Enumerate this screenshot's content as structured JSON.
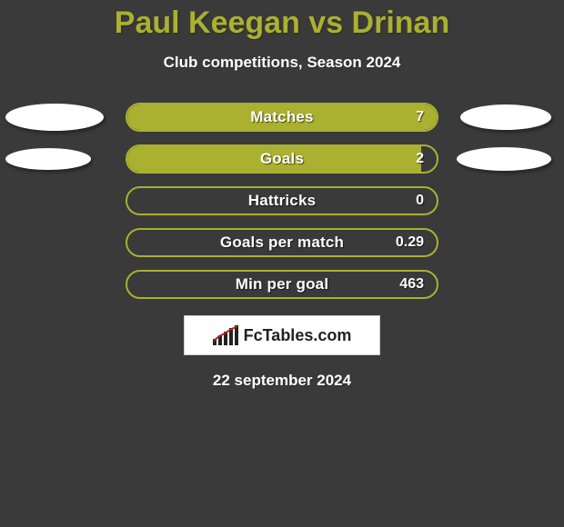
{
  "colors": {
    "page_bg": "#3a3a3a",
    "title_color": "#aab02f",
    "text_light": "#ffffff",
    "bar_border": "#aab02f",
    "bar_fill": "#aab02f",
    "bar_track": "#3a3a3a",
    "ellipse_fill": "#ffffff",
    "brand_bg": "#ffffff",
    "brand_border": "#cccccc",
    "brand_text": "#222222",
    "brand_bar": "#222222",
    "brand_line": "#b22222"
  },
  "title": "Paul Keegan vs Drinan",
  "subtitle": "Club competitions, Season 2024",
  "date": "22 september 2024",
  "brand": "FcTables.com",
  "stats": [
    {
      "label": "Matches",
      "value": "7",
      "fill_pct": 100,
      "show_left_ellipse": true,
      "show_right_ellipse": true,
      "left_w": 108,
      "left_h": 30,
      "right_w": 100,
      "right_h": 28
    },
    {
      "label": "Goals",
      "value": "2",
      "fill_pct": 95,
      "show_left_ellipse": true,
      "show_right_ellipse": true,
      "left_w": 94,
      "left_h": 24,
      "right_w": 104,
      "right_h": 26
    },
    {
      "label": "Hattricks",
      "value": "0",
      "fill_pct": 0,
      "show_left_ellipse": false,
      "show_right_ellipse": false,
      "left_w": 0,
      "left_h": 0,
      "right_w": 0,
      "right_h": 0
    },
    {
      "label": "Goals per match",
      "value": "0.29",
      "fill_pct": 0,
      "show_left_ellipse": false,
      "show_right_ellipse": false,
      "left_w": 0,
      "left_h": 0,
      "right_w": 0,
      "right_h": 0
    },
    {
      "label": "Min per goal",
      "value": "463",
      "fill_pct": 0,
      "show_left_ellipse": false,
      "show_right_ellipse": false,
      "left_w": 0,
      "left_h": 0,
      "right_w": 0,
      "right_h": 0
    }
  ]
}
